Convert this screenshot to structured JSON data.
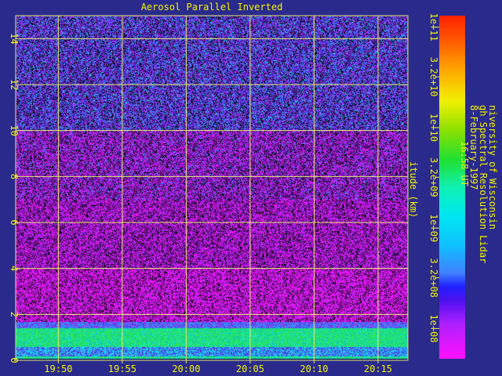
{
  "chart_data": {
    "type": "heatmap",
    "title": "Aerosol Parallel Inverted",
    "ylabel": "itude (km)",
    "x_ticks": [
      "19:50",
      "19:55",
      "20:00",
      "20:05",
      "20:10",
      "20:15"
    ],
    "x_range": [
      "19:46:40",
      "20:17:20"
    ],
    "y_ticks": [
      0,
      2,
      4,
      6,
      8,
      10,
      12,
      14
    ],
    "ylim": [
      0,
      15
    ],
    "grid": true,
    "colorbar": {
      "scale": "log",
      "ticks": [
        "1e+11",
        "3.2e+10",
        "1e+10",
        "3.2e+09",
        "1e+09",
        "3.2e+08",
        "1e+08"
      ],
      "range": [
        50000000.0,
        130000000000.0
      ]
    },
    "layers": [
      {
        "altitude_km": [
          0.0,
          0.3
        ],
        "level": "1e+10"
      },
      {
        "altitude_km": [
          0.3,
          1.5
        ],
        "level": "1e+09 to 3.2e+09"
      },
      {
        "altitude_km": [
          1.5,
          4.0
        ],
        "level": "1e+08"
      },
      {
        "altitude_km": [
          4.0,
          10.0
        ],
        "level": "1e+08 to 3.2e+08"
      },
      {
        "altitude_km": [
          10.0,
          15.0
        ],
        "level": "3.2e+08 to 1e+09"
      }
    ]
  },
  "caption": {
    "institution": "niversity of Wisconsin",
    "instrument": "gh Spectral Resolution Lidar",
    "date": "8-February-1997",
    "time": "16:58 UT"
  },
  "colors": {
    "background": "#2a2a8c",
    "text": "#f4f400",
    "grid": "#e8e870"
  }
}
